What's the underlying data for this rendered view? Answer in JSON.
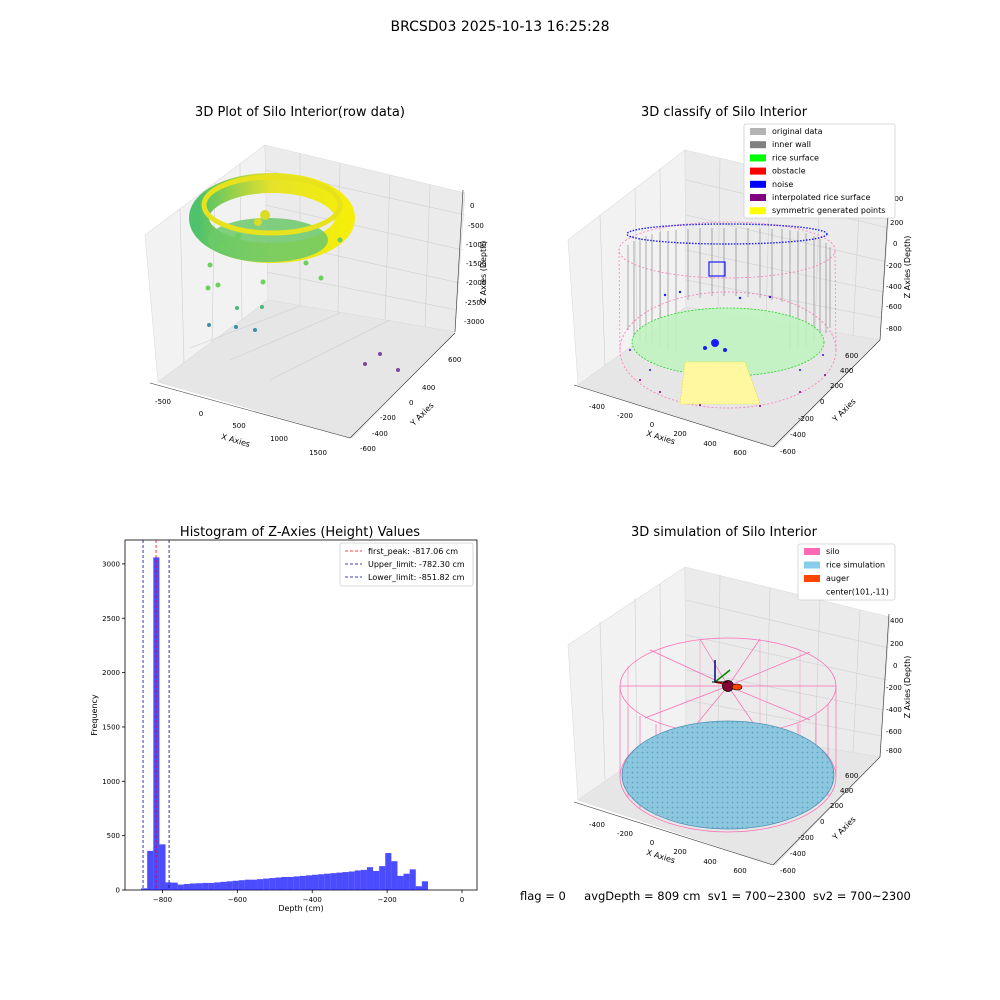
{
  "figure": {
    "title": "BRCSD03 2025-10-13 16:25:28"
  },
  "panels": {
    "raw": {
      "title": "3D Plot of Silo Interior(row data)",
      "xlabel": "X Axies",
      "ylabel": "Y Axies",
      "zlabel": "Z Axies (Depth)",
      "xticks": [
        "-500",
        "0",
        "500",
        "1000",
        "1500"
      ],
      "yticks": [
        "600",
        "400",
        "200",
        "0",
        "-200",
        "-400",
        "-600"
      ],
      "zticks": [
        "0",
        "-500",
        "-1000",
        "-1500",
        "-2000",
        "-2500",
        "-3000"
      ]
    },
    "classify": {
      "title": "3D classify of Silo Interior",
      "xlabel": "X Axies",
      "ylabel": "Y Axies",
      "zlabel": "Z Axies (Depth)",
      "xticks": [
        "-400",
        "-200",
        "0",
        "200",
        "400",
        "600"
      ],
      "yticks": [
        "600",
        "400",
        "200",
        "0",
        "-200",
        "-400",
        "-600"
      ],
      "zticks": [
        "400",
        "200",
        "0",
        "-200",
        "-400",
        "-600",
        "-800"
      ],
      "legend": [
        {
          "label": "original data",
          "color": "#b3b3b3"
        },
        {
          "label": "inner wall",
          "color": "#808080"
        },
        {
          "label": "rice surface",
          "color": "#00ff00"
        },
        {
          "label": "obstacle",
          "color": "#ff0000"
        },
        {
          "label": "noise",
          "color": "#0000ff"
        },
        {
          "label": "interpolated rice surface",
          "color": "#800080"
        },
        {
          "label": "symmetric generated points",
          "color": "#ffff00"
        }
      ]
    },
    "simulation": {
      "title": "3D simulation of Silo Interior",
      "xlabel": "X Axies",
      "ylabel": "Y Axies",
      "zlabel": "Z Axies (Depth)",
      "xticks": [
        "-400",
        "-200",
        "0",
        "200",
        "400",
        "600"
      ],
      "yticks": [
        "600",
        "400",
        "200",
        "0",
        "-200",
        "-400",
        "-600"
      ],
      "zticks": [
        "400",
        "200",
        "0",
        "-200",
        "-400",
        "-600",
        "-800"
      ],
      "legend": [
        {
          "label": "silo",
          "color": "#ff69b4"
        },
        {
          "label": "rice simulation",
          "color": "#87ceeb"
        },
        {
          "label": "auger",
          "color": "#ff4500"
        },
        {
          "label": "center(101,-11)",
          "color": ""
        }
      ]
    }
  },
  "status": {
    "flag": "flag = 0",
    "avg_depth": "avgDepth = 809 cm",
    "sv1": "sv1 = 700~2300",
    "sv2": "sv2 = 700~2300"
  },
  "chart_data": [
    {
      "type": "histogram",
      "title": "Histogram of Z-Axies (Height) Values",
      "xlabel": "Depth (cm)",
      "ylabel": "Frequency",
      "xlim": [
        -900,
        40
      ],
      "ylim": [
        0,
        3220
      ],
      "xticks": [
        -800,
        -600,
        -400,
        -200,
        0
      ],
      "yticks": [
        0,
        500,
        1000,
        1500,
        2000,
        2500,
        3000
      ],
      "bar_color": "#0000ff",
      "bin_width": 16.3,
      "bin_start": -857,
      "counts": [
        15,
        360,
        3060,
        420,
        70,
        68,
        50,
        55,
        60,
        62,
        65,
        65,
        70,
        75,
        80,
        85,
        90,
        95,
        95,
        100,
        105,
        110,
        115,
        120,
        120,
        125,
        130,
        135,
        140,
        145,
        150,
        155,
        160,
        165,
        170,
        180,
        185,
        210,
        175,
        220,
        340,
        265,
        130,
        150,
        190,
        35,
        80
      ],
      "vlines": [
        {
          "label": "first_peak: -817.06 cm",
          "x": -817.06,
          "color": "#ff0000"
        },
        {
          "label": "Upper_limit: -782.30 cm",
          "x": -782.3,
          "color": "#0000aa"
        },
        {
          "label": "Lower_limit: -851.82 cm",
          "x": -851.82,
          "color": "#0000aa"
        }
      ],
      "legend_position": "top-right"
    }
  ]
}
